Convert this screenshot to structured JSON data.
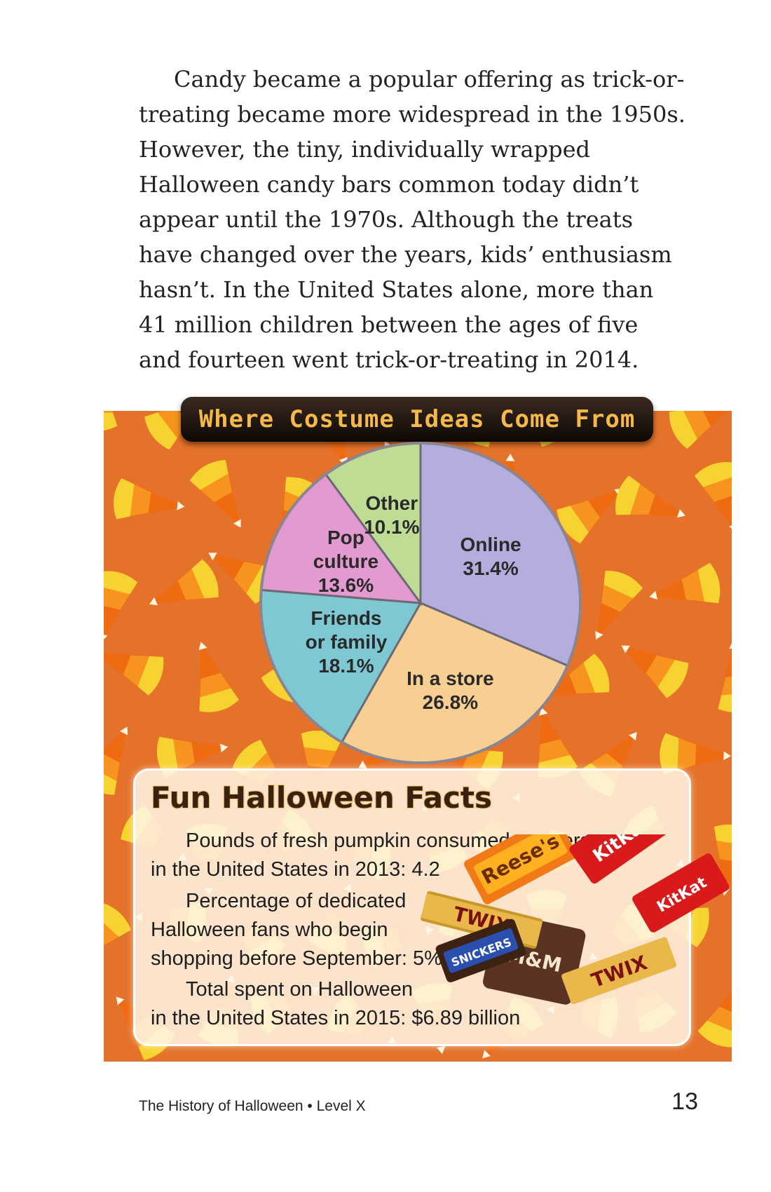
{
  "body_text": "Candy became a popular offering as trick-or-treating became more widespread in the 1950s. However, the tiny, individually wrapped Halloween candy bars common today didn’t appear until the 1970s. Although the treats have changed over the years, kids’ enthusiasm hasn’t. In the United States alone, more than 41 million children between the ages of five and fourteen went trick-or-treating in 2014.",
  "chart_data": {
    "type": "pie",
    "title": "Where Costume Ideas Come From",
    "slices": [
      {
        "label_lines": [
          "Online"
        ],
        "value_label": "31.4%",
        "value": 31.4,
        "color": "#b3aede"
      },
      {
        "label_lines": [
          "In a store"
        ],
        "value_label": "26.8%",
        "value": 26.8,
        "color": "#f8cf92"
      },
      {
        "label_lines": [
          "Friends",
          "or family"
        ],
        "value_label": "18.1%",
        "value": 18.1,
        "color": "#7ec8d3"
      },
      {
        "label_lines": [
          "Pop",
          "culture"
        ],
        "value_label": "13.6%",
        "value": 13.6,
        "color": "#e39ad0"
      },
      {
        "label_lines": [
          "Other"
        ],
        "value_label": "10.1%",
        "value": 10.1,
        "color": "#bfdc95"
      }
    ]
  },
  "facts": {
    "title": "Fun Halloween Facts",
    "items": [
      {
        "lines": [
          "Pounds of fresh pumpkin consumed per person",
          "in the United States in 2013: 4.2"
        ]
      },
      {
        "lines": [
          "Percentage of dedicated",
          "Halloween fans who begin",
          "shopping before September: 5%"
        ]
      },
      {
        "lines": [
          "Total spent on Halloween",
          "in the United States in 2015: $6.89 billion"
        ]
      }
    ],
    "candy_brands": [
      "Reese's",
      "TWIX",
      "KitKat",
      "SNICKERS",
      "M&M"
    ]
  },
  "footer": {
    "book_title": "The History of Halloween • Level X",
    "page_number": "13"
  }
}
